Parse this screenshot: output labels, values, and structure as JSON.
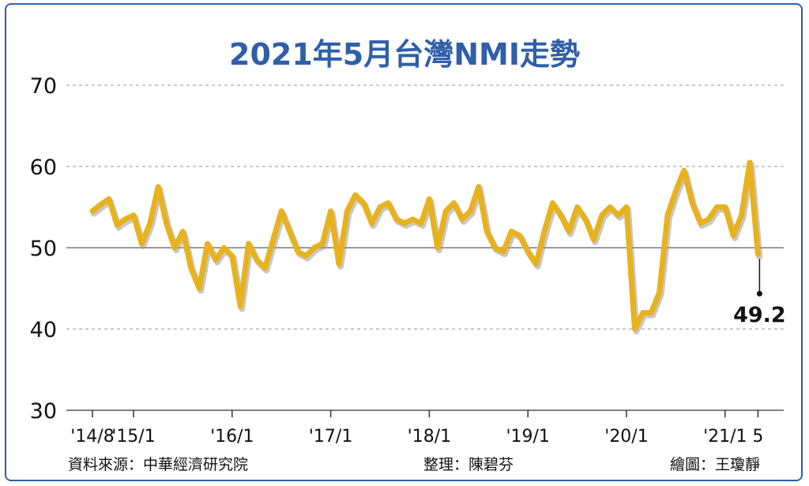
{
  "chart_data": {
    "type": "line",
    "title": "2021年5月台灣NMI走勢",
    "xlabel": "",
    "ylabel": "",
    "ylim": [
      30,
      70
    ],
    "yticks": [
      "70",
      "60",
      "50",
      "40",
      "30"
    ],
    "grid": "horizontal-dashed",
    "reference_line": 50,
    "x_tick_labels": [
      "'14/8",
      "'15/1",
      "'16/1",
      "'17/1",
      "'18/1",
      "'19/1",
      "'20/1",
      "'21/1",
      "5"
    ],
    "x_tick_positions": [
      0,
      5,
      17,
      29,
      41,
      53,
      65,
      77,
      81
    ],
    "series": [
      {
        "color": "#e8b21e",
        "values": [
          54.5,
          55.3,
          56.0,
          52.8,
          53.5,
          54.0,
          50.5,
          53.0,
          57.5,
          53.0,
          50.0,
          52.0,
          47.5,
          45.0,
          50.5,
          48.5,
          50.0,
          49.0,
          42.8,
          50.5,
          48.5,
          47.5,
          51.0,
          54.5,
          52.0,
          49.5,
          49.0,
          50.0,
          50.5,
          54.5,
          48.0,
          54.5,
          56.5,
          55.5,
          53.0,
          55.0,
          55.5,
          53.5,
          53.0,
          53.5,
          53.0,
          56.0,
          50.0,
          54.5,
          55.5,
          53.5,
          54.5,
          57.5,
          52.0,
          50.0,
          49.5,
          52.0,
          51.5,
          49.5,
          48.0,
          52.0,
          55.5,
          54.0,
          52.0,
          55.0,
          53.5,
          51.0,
          54.0,
          55.0,
          54.0,
          55.0,
          40.0,
          42.0,
          42.0,
          44.5,
          54.0,
          57.0,
          59.5,
          55.5,
          53.0,
          53.5,
          55.0,
          55.0,
          51.5,
          54.0,
          60.5,
          49.2
        ]
      }
    ],
    "annotation": {
      "text": "49.2",
      "value": 49.2
    }
  },
  "footer": {
    "source": "資料來源：中華經濟研究院",
    "editor": "整理：陳碧芬",
    "illustrator": "繪圖：王瓊靜"
  },
  "colors": {
    "frame": "#2f5fa8",
    "title": "#2f5fa8",
    "line": "#e8b21e",
    "shadow": "#9a9a9a",
    "grid": "#aaaaaa"
  }
}
